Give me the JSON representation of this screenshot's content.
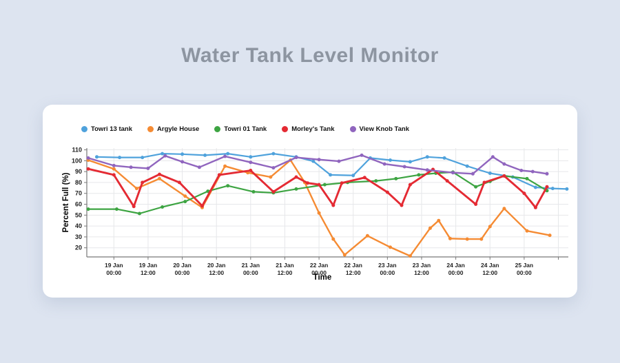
{
  "chart_data": {
    "type": "line",
    "title": "Water Tank Level Monitor",
    "xlabel": "Time",
    "ylabel": "Percent Full (%)",
    "grid": true,
    "legend_position": "top",
    "x_unit": "hours since 19 Jan 00:00",
    "xlim": [
      -9.5,
      159.5
    ],
    "ylim": [
      11.6,
      111.6
    ],
    "y_ticks": [
      20,
      30,
      40,
      50,
      60,
      70,
      80,
      90,
      100,
      110
    ],
    "x_ticks": [
      {
        "t": 0,
        "l1": "19 Jan",
        "l2": "00:00"
      },
      {
        "t": 12,
        "l1": "19 Jan",
        "l2": "12:00"
      },
      {
        "t": 24,
        "l1": "20 Jan",
        "l2": "00:00"
      },
      {
        "t": 36,
        "l1": "20 Jan",
        "l2": "12:00"
      },
      {
        "t": 48,
        "l1": "21 Jan",
        "l2": "00:00"
      },
      {
        "t": 60,
        "l1": "21 Jan",
        "l2": "12:00"
      },
      {
        "t": 72,
        "l1": "22 Jan",
        "l2": "00:00"
      },
      {
        "t": 84,
        "l1": "22 Jan",
        "l2": "12:00"
      },
      {
        "t": 96,
        "l1": "23 Jan",
        "l2": "00:00"
      },
      {
        "t": 108,
        "l1": "23 Jan",
        "l2": "12:00"
      },
      {
        "t": 120,
        "l1": "24 Jan",
        "l2": "00:00"
      },
      {
        "t": 132,
        "l1": "24 Jan",
        "l2": "12:00"
      },
      {
        "t": 144,
        "l1": "25 Jan",
        "l2": "00:00"
      },
      {
        "t": 156,
        "l1": "",
        "l2": ""
      }
    ],
    "series": [
      {
        "name": "Towri 13 tank",
        "color": "#4FA2DC",
        "width": 2.2,
        "points": [
          [
            -6,
            103.5
          ],
          [
            2,
            103
          ],
          [
            10,
            103
          ],
          [
            17,
            106.5
          ],
          [
            24,
            106
          ],
          [
            32,
            105
          ],
          [
            40,
            106.5
          ],
          [
            48,
            103.5
          ],
          [
            56,
            106.5
          ],
          [
            64,
            103.5
          ],
          [
            70,
            99.5
          ],
          [
            76,
            87
          ],
          [
            84,
            86.5
          ],
          [
            90,
            102.5
          ],
          [
            97,
            100.5
          ],
          [
            104,
            99
          ],
          [
            110,
            103.5
          ],
          [
            116,
            102.5
          ],
          [
            124,
            95
          ],
          [
            132,
            88.5
          ],
          [
            140,
            85
          ],
          [
            148,
            75.5
          ],
          [
            154,
            74.5
          ],
          [
            159,
            74
          ]
        ]
      },
      {
        "name": "Argyle House",
        "color": "#F58B33",
        "width": 2.4,
        "points": [
          [
            -9,
            100.5
          ],
          [
            0,
            92.5
          ],
          [
            8,
            74.5
          ],
          [
            16,
            83.5
          ],
          [
            25,
            67.5
          ],
          [
            31,
            57
          ],
          [
            39,
            95
          ],
          [
            47,
            89
          ],
          [
            55,
            85
          ],
          [
            62,
            100.5
          ],
          [
            67,
            80
          ],
          [
            72,
            52
          ],
          [
            77,
            28
          ],
          [
            81,
            13.5
          ],
          [
            89,
            31
          ],
          [
            97,
            20.5
          ],
          [
            104,
            12.5
          ],
          [
            111,
            38
          ],
          [
            114,
            45
          ],
          [
            118,
            28.5
          ],
          [
            124,
            28
          ],
          [
            129,
            28
          ],
          [
            132,
            39.5
          ],
          [
            137,
            56
          ],
          [
            145,
            35.5
          ],
          [
            153,
            31.5
          ]
        ]
      },
      {
        "name": "Towri 01 Tank",
        "color": "#3DA442",
        "width": 2.2,
        "points": [
          [
            -9,
            55.5
          ],
          [
            1,
            55.5
          ],
          [
            9,
            51.5
          ],
          [
            17,
            57.5
          ],
          [
            25,
            62.5
          ],
          [
            33,
            72
          ],
          [
            40,
            77
          ],
          [
            49,
            71.5
          ],
          [
            56,
            70.5
          ],
          [
            64,
            74
          ],
          [
            74,
            78
          ],
          [
            82,
            80
          ],
          [
            92,
            81.5
          ],
          [
            99,
            83.5
          ],
          [
            107,
            87
          ],
          [
            113,
            88.5
          ],
          [
            119,
            89.5
          ],
          [
            127,
            76
          ],
          [
            132,
            81
          ],
          [
            137,
            86
          ],
          [
            145,
            83.5
          ],
          [
            152,
            72.5
          ]
        ]
      },
      {
        "name": "Morley's Tank",
        "color": "#E42A33",
        "width": 2.9,
        "points": [
          [
            -9,
            92.5
          ],
          [
            0,
            87
          ],
          [
            7,
            58
          ],
          [
            10,
            80
          ],
          [
            16,
            87.5
          ],
          [
            23,
            80
          ],
          [
            31,
            58.5
          ],
          [
            37,
            87
          ],
          [
            48,
            91
          ],
          [
            56,
            71.5
          ],
          [
            64,
            85
          ],
          [
            68,
            79.5
          ],
          [
            72,
            78
          ],
          [
            77,
            59
          ],
          [
            80,
            79.5
          ],
          [
            88,
            84.5
          ],
          [
            96,
            71
          ],
          [
            101,
            59
          ],
          [
            104,
            78
          ],
          [
            112,
            92
          ],
          [
            117,
            81.5
          ],
          [
            127,
            60
          ],
          [
            130,
            80
          ],
          [
            137,
            86
          ],
          [
            144,
            70
          ],
          [
            148,
            57
          ],
          [
            152,
            76
          ]
        ]
      },
      {
        "name": "View Knob Tank",
        "color": "#9065BE",
        "width": 2.4,
        "points": [
          [
            -9,
            102.5
          ],
          [
            0,
            95.5
          ],
          [
            6,
            94
          ],
          [
            12,
            93
          ],
          [
            18,
            104.5
          ],
          [
            24,
            99
          ],
          [
            30,
            94
          ],
          [
            39,
            104
          ],
          [
            48,
            98.5
          ],
          [
            56,
            93.5
          ],
          [
            64,
            103
          ],
          [
            72,
            101
          ],
          [
            79,
            99.5
          ],
          [
            87,
            105
          ],
          [
            95,
            97
          ],
          [
            102,
            94.5
          ],
          [
            110,
            91.5
          ],
          [
            119,
            89
          ],
          [
            126,
            88
          ],
          [
            133,
            103.5
          ],
          [
            137,
            97
          ],
          [
            143,
            91
          ],
          [
            147,
            90
          ],
          [
            152,
            88
          ]
        ]
      }
    ]
  }
}
